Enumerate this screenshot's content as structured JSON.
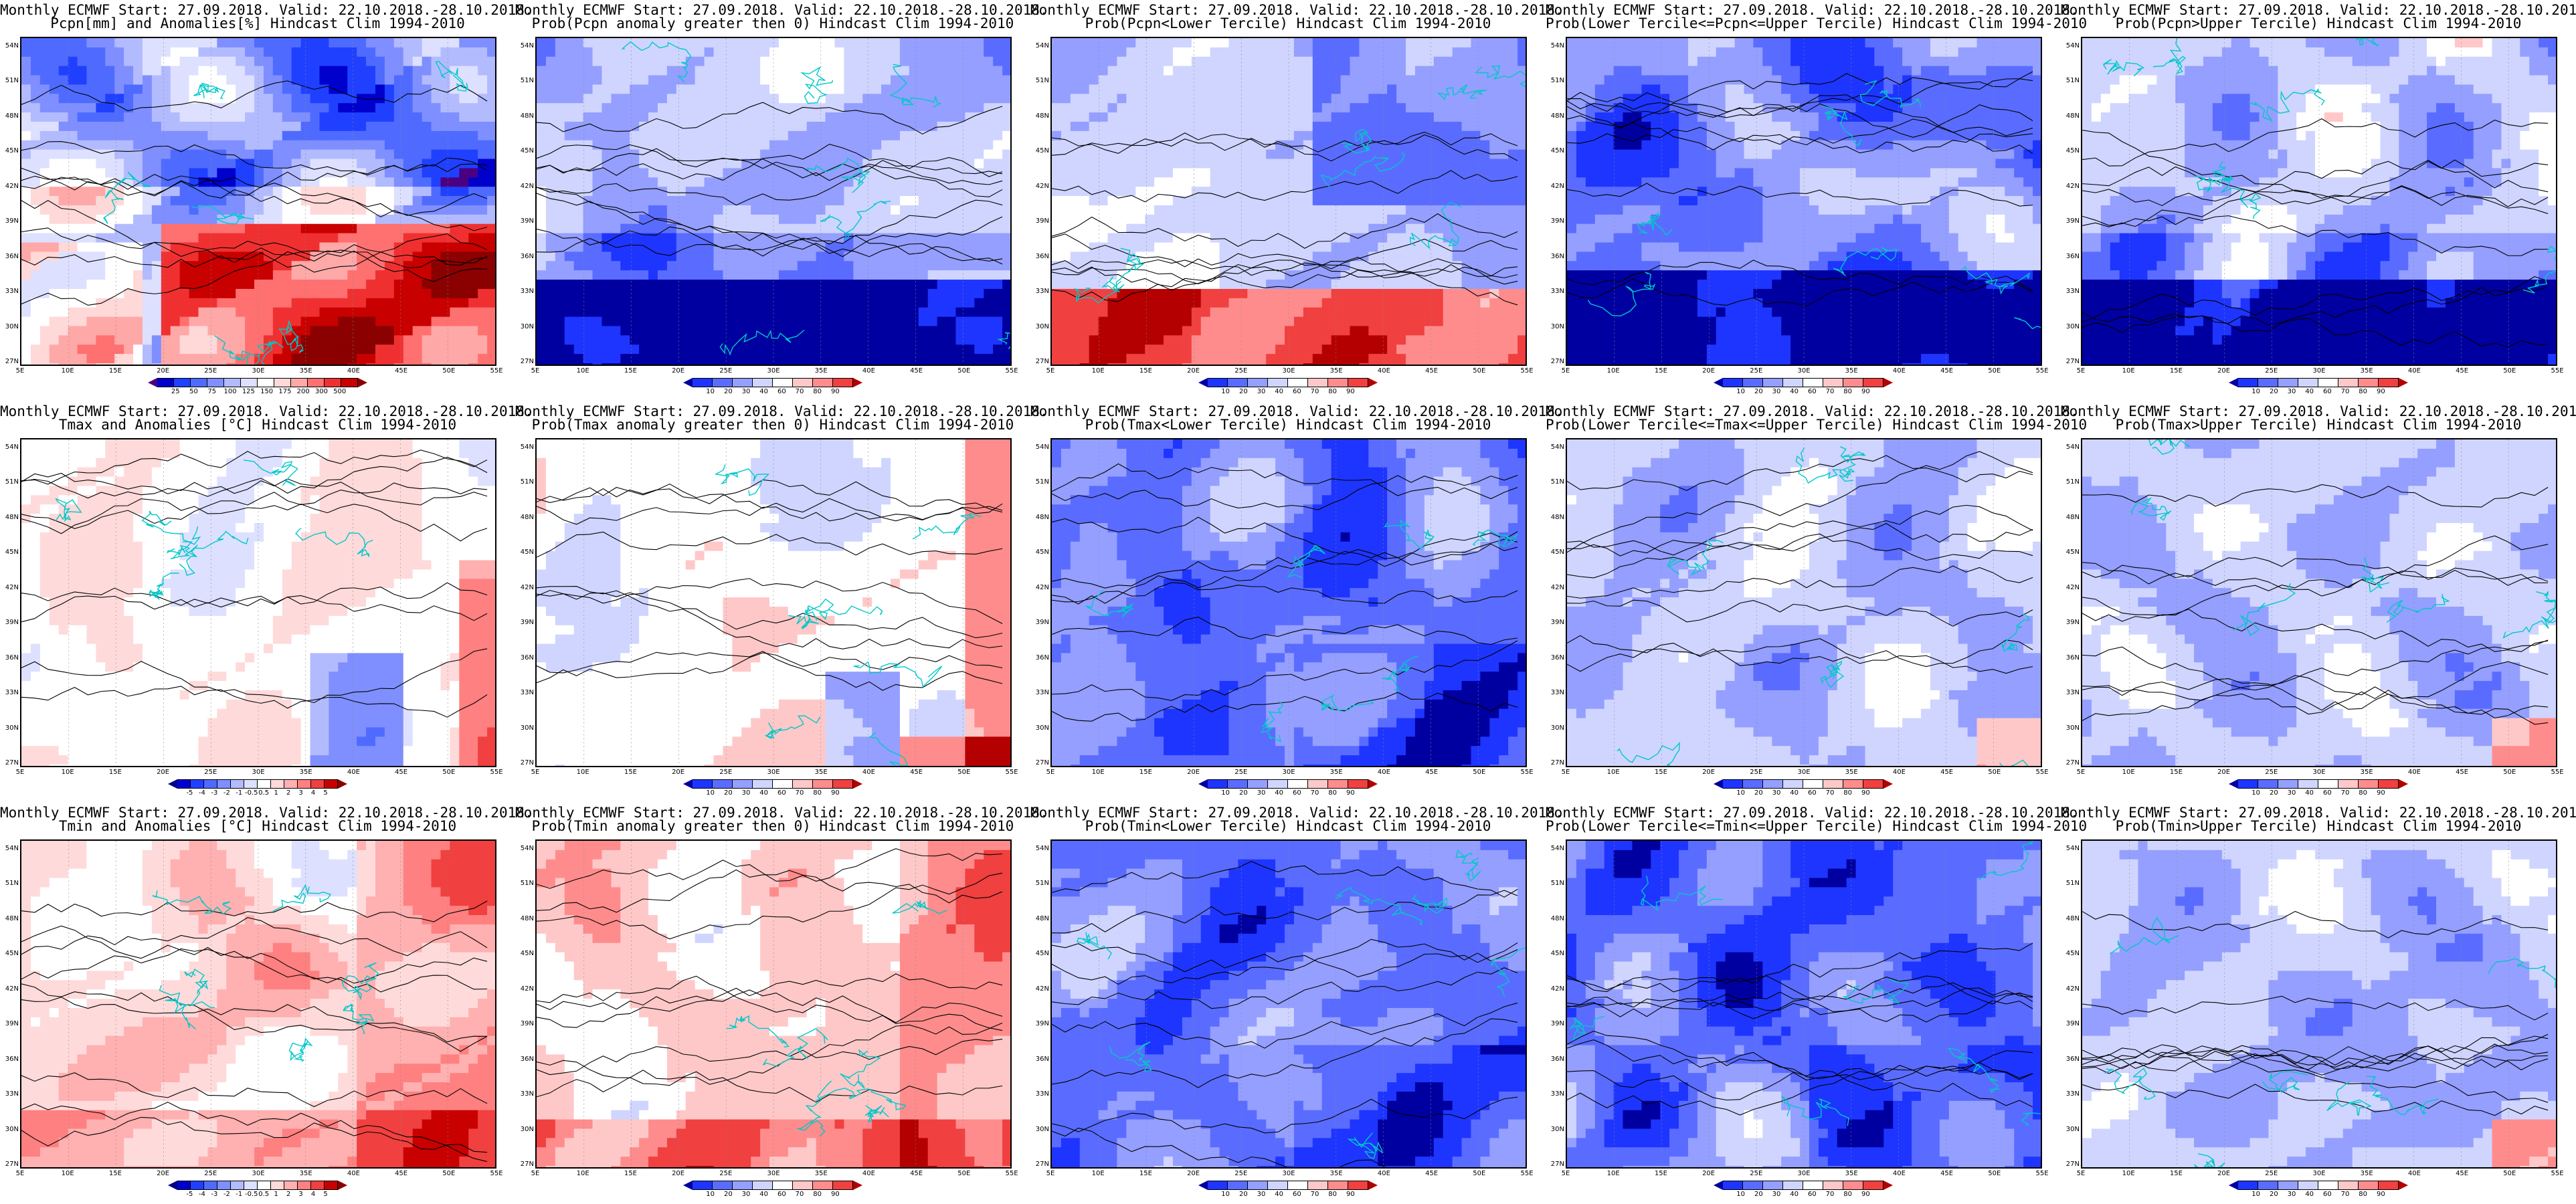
{
  "common": {
    "lat_labels": [
      "54N",
      "51N",
      "48N",
      "45N",
      "42N",
      "39N",
      "36N",
      "33N",
      "30N",
      "27N"
    ],
    "lon_labels": [
      "5E",
      "10E",
      "15E",
      "20E",
      "25E",
      "30E",
      "35E",
      "40E",
      "45E",
      "50E",
      "55E"
    ],
    "title_line1": "Monthly ECMWF Start: 27.09.2018. Valid: 22.10.2018.-28.10.2018."
  },
  "scales": {
    "precip": {
      "labels": [
        "25",
        "50",
        "75",
        "100",
        "125",
        "150",
        "175",
        "200",
        "300",
        "500"
      ],
      "colors": [
        "#4b0082",
        "#0000cd",
        "#2040ff",
        "#4f6bff",
        "#7f8fff",
        "#b3bbff",
        "#dde0ff",
        "#ffffff",
        "#ffd8d8",
        "#ffa8a8",
        "#ff7070",
        "#f03030",
        "#c80000",
        "#8b0000"
      ]
    },
    "prob": {
      "labels": [
        "10",
        "20",
        "30",
        "40",
        "60",
        "70",
        "80",
        "90"
      ],
      "colors": [
        "#0000a0",
        "#1e35ff",
        "#5a6cff",
        "#949fff",
        "#cfd5ff",
        "#ffffff",
        "#ffc8c8",
        "#ff8c8c",
        "#f04040",
        "#b40000"
      ]
    },
    "anom": {
      "labels": [
        "-5",
        "-4",
        "-3",
        "-2",
        "-1",
        "-0.5",
        "0.5",
        "1",
        "2",
        "3",
        "4",
        "5"
      ],
      "colors": [
        "#00008b",
        "#0000cd",
        "#2040ff",
        "#4f6bff",
        "#7f8fff",
        "#b3bbff",
        "#dde0ff",
        "#ffffff",
        "#ffdada",
        "#ffb0b0",
        "#ff8080",
        "#f04040",
        "#c80000",
        "#8b0000"
      ]
    }
  },
  "panels": [
    {
      "title2": "Pcpn[mm] and Anomalies[%] Hindcast Clim 1994-2010",
      "scale": "precip",
      "pattern": "precip_anom"
    },
    {
      "title2": "Prob(Pcpn anomaly greater then 0) Hindcast Clim 1994-2010",
      "scale": "prob",
      "pattern": "prob_blue_south"
    },
    {
      "title2": "Prob(Pcpn<Lower Tercile) Hindcast Clim 1994-2010",
      "scale": "prob",
      "pattern": "prob_red_south"
    },
    {
      "title2": "Prob(Lower Tercile<=Pcpn<=Upper Tercile) Hindcast Clim 1994-2010",
      "scale": "prob",
      "pattern": "prob_deep_blue"
    },
    {
      "title2": "Prob(Pcpn>Upper Tercile) Hindcast Clim 1994-2010",
      "scale": "prob",
      "pattern": "prob_blue_south"
    },
    {
      "title2": "Tmax and Anomalies [°C] Hindcast Clim 1994-2010",
      "scale": "anom",
      "pattern": "anom_white"
    },
    {
      "title2": "Prob(Tmax anomaly greater then 0) Hindcast Clim 1994-2010",
      "scale": "prob",
      "pattern": "prob_pink"
    },
    {
      "title2": "Prob(Tmax<Lower Tercile) Hindcast Clim 1994-2010",
      "scale": "prob",
      "pattern": "prob_blue"
    },
    {
      "title2": "Prob(Lower Tercile<=Tmax<=Upper Tercile) Hindcast Clim 1994-2010",
      "scale": "prob",
      "pattern": "prob_light_blue"
    },
    {
      "title2": "Prob(Tmax>Upper Tercile) Hindcast Clim 1994-2010",
      "scale": "prob",
      "pattern": "prob_light_blue"
    },
    {
      "title2": "Tmin and Anomalies [°C] Hindcast Clim 1994-2010",
      "scale": "anom",
      "pattern": "anom_pink"
    },
    {
      "title2": "Prob(Tmin anomaly greater then 0) Hindcast Clim 1994-2010",
      "scale": "prob",
      "pattern": "prob_red"
    },
    {
      "title2": "Prob(Tmin<Lower Tercile) Hindcast Clim 1994-2010",
      "scale": "prob",
      "pattern": "prob_blue"
    },
    {
      "title2": "Prob(Lower Tercile<=Tmin<=Upper Tercile) Hindcast Clim 1994-2010",
      "scale": "prob",
      "pattern": "prob_blue"
    },
    {
      "title2": "Prob(Tmin>Upper Tercile) Hindcast Clim 1994-2010",
      "scale": "prob",
      "pattern": "prob_light_blue"
    }
  ]
}
